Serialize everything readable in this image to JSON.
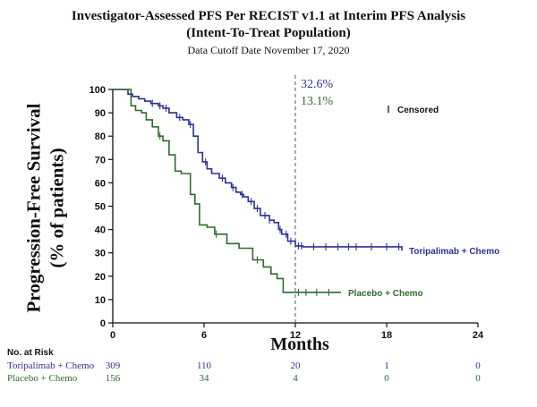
{
  "chart_data": {
    "type": "line",
    "style": "kaplan-meier step",
    "title_line1": "Investigator-Assessed PFS Per RECIST v1.1 at Interim PFS Analysis",
    "title_line2": "(Intent-To-Treat Population)",
    "subtitle": "Data Cutoff Date November 17, 2020",
    "ylabel_line1": "Progression-Free Survival",
    "ylabel_line2": "(% of patients)",
    "xlabel": "Months",
    "xlim": [
      0,
      24
    ],
    "ylim": [
      0,
      100
    ],
    "x_ticks": [
      "0",
      "6",
      "12",
      "18",
      "24"
    ],
    "x_tick_values": [
      0,
      6,
      12,
      18,
      24
    ],
    "y_ticks": [
      "0",
      "10",
      "20",
      "30",
      "40",
      "50",
      "60",
      "70",
      "80",
      "90",
      "100"
    ],
    "y_tick_values": [
      0,
      10,
      20,
      30,
      40,
      50,
      60,
      70,
      80,
      90,
      100
    ],
    "reference_line_x": 12,
    "annotations": [
      {
        "text": "32.6%",
        "series": 0
      },
      {
        "text": "13.1%",
        "series": 1
      }
    ],
    "censored_legend": "Censored",
    "series": [
      {
        "name": "Toripalimab + Chemo",
        "color": "#2e3192",
        "x": [
          0,
          1,
          1.3,
          1.7,
          2.1,
          2.5,
          3.0,
          3.3,
          3.7,
          4.2,
          4.6,
          5.0,
          5.3,
          5.6,
          5.9,
          6.2,
          6.5,
          7.0,
          7.4,
          7.8,
          8.1,
          8.4,
          8.6,
          8.9,
          9.3,
          9.7,
          10.3,
          10.6,
          10.9,
          11.1,
          11.5,
          12.0,
          12.5,
          19.0
        ],
        "y": [
          100,
          98,
          97,
          96,
          95,
          94,
          93,
          92,
          90,
          88,
          87,
          85,
          80,
          73,
          69,
          66,
          64,
          62,
          60,
          58,
          56,
          55,
          54,
          52,
          49,
          46,
          44,
          43,
          40,
          38,
          35,
          33,
          32.6,
          31
        ],
        "censor_x": [
          2.6,
          3.1,
          3.5,
          4.4,
          5.1,
          6.1,
          7.2,
          7.9,
          8.5,
          9.1,
          9.5,
          10.0,
          10.3,
          11.0,
          11.4,
          11.7,
          12.2,
          12.4,
          13.2,
          14.0,
          14.8,
          15.5,
          16.0,
          17.0,
          18.0,
          18.8
        ],
        "risk": [
          "309",
          "110",
          "20",
          "1",
          "0"
        ]
      },
      {
        "name": "Placebo + Chemo",
        "color": "#2e6b2e",
        "x": [
          0,
          1.2,
          1.5,
          1.9,
          2.2,
          2.6,
          3.0,
          3.3,
          3.7,
          4.1,
          4.5,
          5.1,
          5.4,
          5.7,
          6.2,
          6.7,
          7.5,
          8.3,
          9.2,
          9.9,
          10.4,
          10.8,
          11.2,
          15.0
        ],
        "y": [
          100,
          93,
          91,
          90,
          87,
          84,
          80,
          78,
          72,
          65,
          64,
          55,
          51,
          42,
          41,
          38,
          34,
          32,
          27,
          24,
          21,
          19,
          13.1,
          13.1
        ],
        "censor_x": [
          3.1,
          6.8,
          9.5,
          12.2,
          12.7,
          13.4,
          14.2
        ],
        "risk": [
          "156",
          "34",
          "4",
          "0",
          "0"
        ]
      }
    ],
    "risk_table_title": "No. at Risk"
  }
}
